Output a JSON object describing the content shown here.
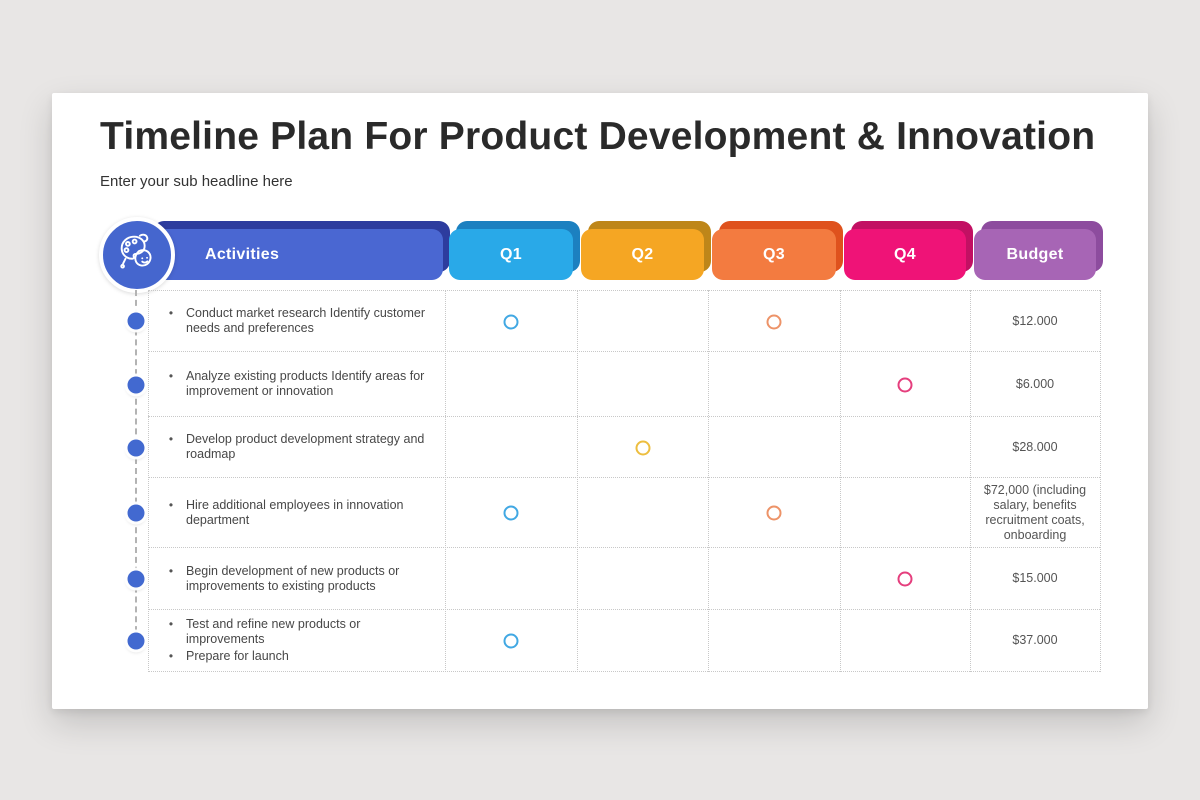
{
  "title": "Timeline Plan For Product Development & Innovation",
  "subtitle": "Enter your sub headline here",
  "table": {
    "icon": "palette-mask-creativity-icon",
    "columns": [
      {
        "key": "activities",
        "label": "Activities",
        "front_color": "#4a67d2",
        "back_color": "#2d3c9e"
      },
      {
        "key": "q1",
        "label": "Q1",
        "front_color": "#29a9e8",
        "back_color": "#1c80c0"
      },
      {
        "key": "q2",
        "label": "Q2",
        "front_color": "#f5a623",
        "back_color": "#be8619"
      },
      {
        "key": "q3",
        "label": "Q3",
        "front_color": "#f37b40",
        "back_color": "#df521d"
      },
      {
        "key": "q4",
        "label": "Q4",
        "front_color": "#ef1377",
        "back_color": "#c21063"
      },
      {
        "key": "budget",
        "label": "Budget",
        "front_color": "#a765b5",
        "back_color": "#8d4c9e"
      }
    ],
    "marker_colors": {
      "q1": "#41a8e3",
      "q2": "#edbe3f",
      "q3": "#ed9368",
      "q4": "#e53e7d"
    },
    "timeline_dot_color": "#4269d0",
    "rows": [
      {
        "activity_items": [
          "Conduct market research Identify customer needs and preferences"
        ],
        "marks": [
          "q1",
          "q3"
        ],
        "budget": "$12.000"
      },
      {
        "activity_items": [
          "Analyze existing products Identify areas for improvement or innovation"
        ],
        "marks": [
          "q4"
        ],
        "budget": "$6.000"
      },
      {
        "activity_items": [
          "Develop product development strategy and roadmap"
        ],
        "marks": [
          "q2"
        ],
        "budget": "$28.000"
      },
      {
        "activity_items": [
          "Hire additional employees in innovation department"
        ],
        "marks": [
          "q1",
          "q3"
        ],
        "budget": "$72,000 (including salary, benefits recruitment coats, onboarding"
      },
      {
        "activity_items": [
          "Begin development of new products or improvements to existing products"
        ],
        "marks": [
          "q4"
        ],
        "budget": "$15.000"
      },
      {
        "activity_items": [
          "Test and refine new products or improvements",
          "Prepare for launch"
        ],
        "marks": [
          "q1"
        ],
        "budget": "$37.000"
      }
    ]
  }
}
